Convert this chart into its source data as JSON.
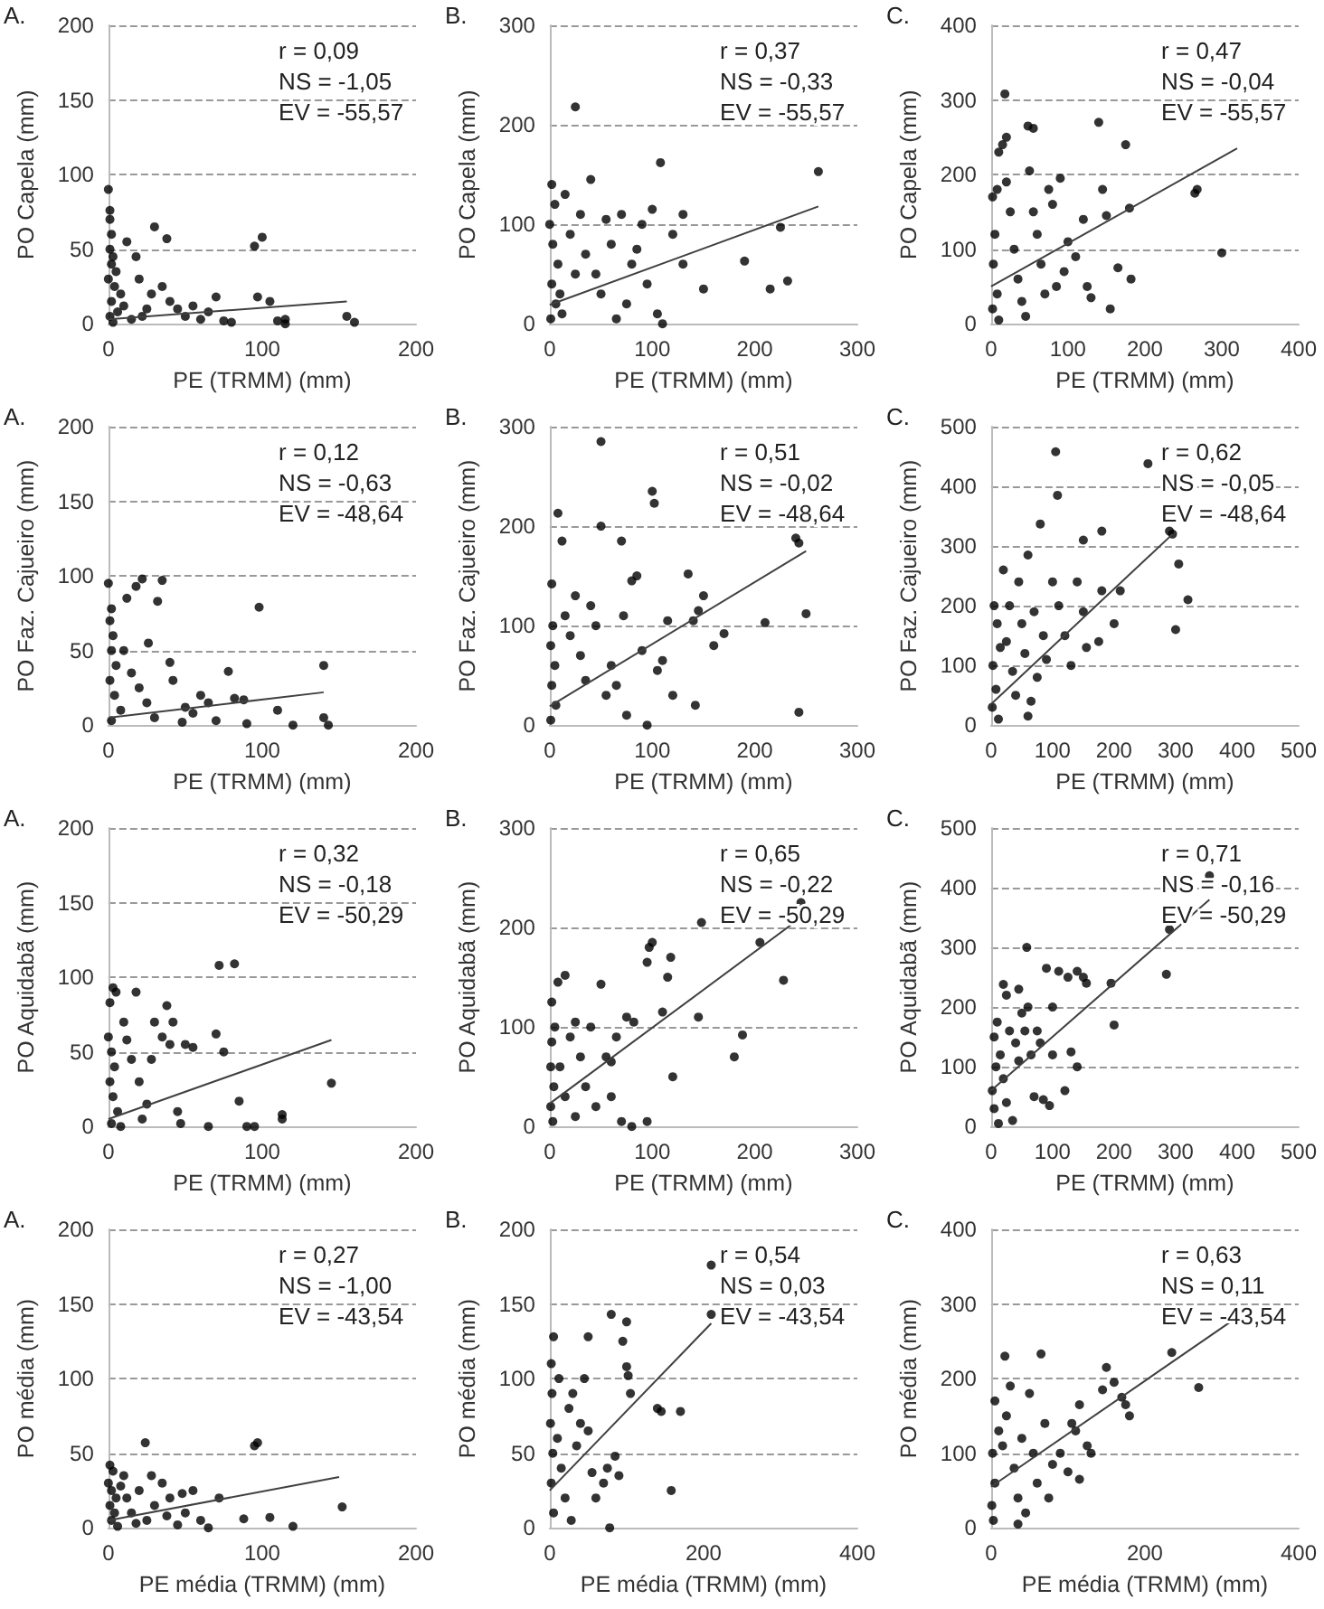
{
  "chart_data": [
    {
      "type": "scatter",
      "title": "A.",
      "xlabel": "PE (TRMM) (mm)",
      "ylabel": "PO Capela (mm)",
      "annotations": [
        "r = 0,09",
        "NS = -1,05",
        "EV = -55,57"
      ],
      "xlim": [
        0,
        200
      ],
      "xticks": [
        0,
        100,
        200
      ],
      "ylim": [
        0,
        200
      ],
      "yticks": [
        0,
        50,
        100,
        150,
        200
      ],
      "grid": "y",
      "marker": "circle",
      "series": [
        {
          "color": "#000000",
          "x": [
            0,
            1,
            1,
            2,
            1,
            3,
            2,
            5,
            0,
            4,
            8,
            2,
            10,
            6,
            1,
            15,
            3,
            12,
            20,
            25,
            28,
            30,
            35,
            38,
            40,
            45,
            50,
            60,
            70,
            75,
            80,
            95,
            100,
            97,
            105,
            110,
            115,
            115,
            155,
            160,
            18,
            22,
            55,
            65
          ],
          "values": [
            90,
            76,
            70,
            60,
            50,
            45,
            40,
            35,
            30,
            25,
            20,
            15,
            12,
            8,
            5,
            3,
            1,
            55,
            30,
            10,
            20,
            65,
            25,
            57,
            15,
            10,
            5,
            3,
            18,
            2,
            1,
            52,
            58,
            18,
            15,
            2,
            3,
            0,
            5,
            1,
            45,
            5,
            12,
            8
          ]
        },
        {
          "type": "line",
          "color": "#404040",
          "marker": "none",
          "x": [
            0,
            155
          ],
          "values": [
            3,
            15
          ]
        }
      ]
    },
    {
      "type": "scatter",
      "title": "B.",
      "xlabel": "PE (TRMM) (mm)",
      "ylabel": "PO Capela (mm)",
      "annotations": [
        "r = 0,37",
        "NS = -0,33",
        "EV = -55,57"
      ],
      "xlim": [
        0,
        300
      ],
      "xticks": [
        0,
        100,
        200,
        300
      ],
      "ylim": [
        0,
        300
      ],
      "yticks": [
        0,
        100,
        200,
        300
      ],
      "grid": "y",
      "marker": "circle",
      "series": [
        {
          "color": "#000000",
          "x": [
            25,
            2,
            5,
            0,
            3,
            8,
            2,
            6,
            1,
            15,
            20,
            30,
            40,
            35,
            45,
            50,
            60,
            70,
            75,
            80,
            90,
            95,
            100,
            105,
            108,
            110,
            120,
            130,
            130,
            150,
            190,
            215,
            225,
            232,
            262,
            10,
            55,
            65,
            85,
            25,
            12
          ],
          "values": [
            218,
            140,
            120,
            100,
            80,
            60,
            40,
            20,
            5,
            130,
            90,
            110,
            145,
            70,
            50,
            30,
            80,
            110,
            20,
            60,
            100,
            40,
            115,
            10,
            162,
            0,
            90,
            110,
            60,
            35,
            63,
            35,
            97,
            43,
            153,
            30,
            105,
            5,
            75,
            50,
            10
          ]
        },
        {
          "type": "line",
          "color": "#404040",
          "marker": "none",
          "x": [
            0,
            262
          ],
          "values": [
            19,
            118
          ]
        }
      ]
    },
    {
      "type": "scatter",
      "title": "C.",
      "xlabel": "PE (TRMM) (mm)",
      "ylabel": "PO Capela (mm)",
      "annotations": [
        "r = 0,47",
        "NS = -0,04",
        "EV = -55,57"
      ],
      "xlim": [
        0,
        400
      ],
      "xticks": [
        0,
        100,
        200,
        300,
        400
      ],
      "ylim": [
        0,
        400
      ],
      "yticks": [
        0,
        100,
        200,
        300,
        400
      ],
      "grid": "y",
      "marker": "circle",
      "series": [
        {
          "color": "#000000",
          "x": [
            18,
            15,
            20,
            10,
            8,
            20,
            2,
            5,
            3,
            8,
            2,
            10,
            25,
            30,
            35,
            40,
            48,
            55,
            50,
            55,
            60,
            65,
            70,
            75,
            80,
            90,
            95,
            100,
            110,
            120,
            125,
            130,
            140,
            145,
            150,
            155,
            165,
            175,
            180,
            182,
            265,
            268,
            300,
            85,
            45
          ],
          "values": [
            308,
            240,
            250,
            230,
            180,
            190,
            170,
            120,
            80,
            40,
            20,
            5,
            150,
            100,
            60,
            30,
            265,
            262,
            205,
            150,
            120,
            80,
            40,
            180,
            160,
            195,
            70,
            110,
            90,
            140,
            50,
            35,
            270,
            180,
            145,
            20,
            75,
            240,
            155,
            60,
            175,
            180,
            95,
            50,
            10
          ]
        },
        {
          "type": "line",
          "color": "#404040",
          "marker": "none",
          "x": [
            0,
            320
          ],
          "values": [
            50,
            235
          ]
        }
      ]
    },
    {
      "type": "scatter",
      "title": "A.",
      "xlabel": "PE (TRMM) (mm)",
      "ylabel": "PO Faz. Cajueiro (mm)",
      "annotations": [
        "r = 0,12",
        "NS = -0,63",
        "EV = -48,64"
      ],
      "xlim": [
        0,
        200
      ],
      "xticks": [
        0,
        100,
        200
      ],
      "ylim": [
        0,
        200
      ],
      "yticks": [
        0,
        50,
        100,
        150,
        200
      ],
      "grid": "y",
      "marker": "circle",
      "series": [
        {
          "color": "#000000",
          "x": [
            0,
            2,
            1,
            3,
            2,
            5,
            1,
            4,
            8,
            2,
            18,
            22,
            32,
            35,
            12,
            10,
            15,
            20,
            25,
            30,
            40,
            42,
            50,
            55,
            60,
            70,
            78,
            82,
            88,
            90,
            98,
            110,
            120,
            140,
            140,
            143,
            48,
            65,
            26
          ],
          "values": [
            95,
            78,
            70,
            60,
            50,
            40,
            30,
            20,
            10,
            3,
            93,
            98,
            83,
            97,
            85,
            50,
            35,
            25,
            15,
            5,
            42,
            30,
            12,
            8,
            20,
            3,
            36,
            18,
            17,
            1,
            79,
            10,
            0,
            40,
            5,
            0,
            2,
            15,
            55
          ]
        },
        {
          "type": "line",
          "color": "#404040",
          "marker": "none",
          "x": [
            0,
            140
          ],
          "values": [
            5,
            22
          ]
        }
      ]
    },
    {
      "type": "scatter",
      "title": "B.",
      "xlabel": "PE (TRMM) (mm)",
      "ylabel": "PO Faz. Cajueiro (mm)",
      "annotations": [
        "r = 0,51",
        "NS = -0,02",
        "EV = -48,64"
      ],
      "xlim": [
        0,
        300
      ],
      "xticks": [
        0,
        100,
        200,
        300
      ],
      "ylim": [
        0,
        300
      ],
      "yticks": [
        0,
        100,
        200,
        300
      ],
      "grid": "y",
      "marker": "circle",
      "series": [
        {
          "color": "#000000",
          "x": [
            50,
            8,
            12,
            2,
            3,
            1,
            5,
            2,
            6,
            1,
            15,
            20,
            25,
            30,
            40,
            45,
            50,
            55,
            60,
            70,
            72,
            75,
            80,
            85,
            90,
            95,
            100,
            102,
            105,
            110,
            115,
            120,
            135,
            140,
            145,
            142,
            150,
            160,
            170,
            210,
            240,
            243,
            243,
            250,
            35,
            65
          ],
          "values": [
            285,
            213,
            185,
            142,
            100,
            80,
            60,
            40,
            20,
            5,
            110,
            90,
            130,
            70,
            120,
            100,
            200,
            30,
            60,
            185,
            110,
            10,
            145,
            150,
            75,
            0,
            235,
            223,
            55,
            65,
            105,
            30,
            152,
            105,
            115,
            20,
            130,
            80,
            92,
            103,
            188,
            183,
            13,
            112,
            45,
            40
          ]
        },
        {
          "type": "line",
          "color": "#404040",
          "marker": "none",
          "x": [
            0,
            250
          ],
          "values": [
            19,
            175
          ]
        }
      ]
    },
    {
      "type": "scatter",
      "title": "C.",
      "xlabel": "PE (TRMM) (mm)",
      "ylabel": "PO Faz. Cajueiro (mm)",
      "annotations": [
        "r = 0,62",
        "NS = -0,05",
        "EV = -48,64"
      ],
      "xlim": [
        0,
        500
      ],
      "xticks": [
        0,
        100,
        200,
        300,
        400,
        500
      ],
      "ylim": [
        0,
        500
      ],
      "yticks": [
        0,
        100,
        200,
        300,
        400,
        500
      ],
      "grid": "y",
      "marker": "circle",
      "series": [
        {
          "color": "#000000",
          "x": [
            105,
            108,
            255,
            80,
            60,
            290,
            150,
            180,
            295,
            305,
            300,
            320,
            5,
            10,
            15,
            3,
            8,
            2,
            12,
            20,
            25,
            30,
            35,
            40,
            50,
            55,
            60,
            70,
            75,
            85,
            90,
            100,
            110,
            120,
            130,
            140,
            150,
            155,
            175,
            180,
            200,
            210,
            45,
            65
          ],
          "values": [
            458,
            385,
            438,
            337,
            285,
            325,
            310,
            325,
            320,
            270,
            160,
            210,
            200,
            170,
            130,
            100,
            60,
            30,
            10,
            260,
            140,
            200,
            90,
            50,
            170,
            120,
            15,
            190,
            80,
            150,
            110,
            240,
            200,
            150,
            100,
            240,
            190,
            130,
            140,
            225,
            170,
            225,
            240,
            40
          ]
        },
        {
          "type": "line",
          "color": "#404040",
          "marker": "none",
          "x": [
            0,
            295
          ],
          "values": [
            35,
            320
          ]
        }
      ]
    },
    {
      "type": "scatter",
      "title": "A.",
      "xlabel": "PE (TRMM) (mm)",
      "ylabel": "PO Aquidabã (mm)",
      "annotations": [
        "r = 0,32",
        "NS = -0,18",
        "EV = -50,29"
      ],
      "xlim": [
        0,
        200
      ],
      "xticks": [
        0,
        100,
        200
      ],
      "ylim": [
        0,
        200
      ],
      "yticks": [
        0,
        50,
        100,
        150,
        200
      ],
      "grid": "y",
      "marker": "circle",
      "series": [
        {
          "color": "#000000",
          "x": [
            3,
            1,
            5,
            0,
            2,
            4,
            1,
            3,
            6,
            2,
            10,
            12,
            15,
            18,
            20,
            25,
            28,
            30,
            35,
            38,
            40,
            42,
            45,
            50,
            55,
            65,
            70,
            72,
            75,
            82,
            85,
            90,
            95,
            113,
            113,
            145,
            8,
            22,
            47
          ],
          "values": [
            93,
            83,
            90,
            60,
            50,
            40,
            30,
            20,
            10,
            2,
            70,
            58,
            45,
            90,
            30,
            15,
            45,
            70,
            60,
            81,
            55,
            70,
            10,
            55,
            53,
            0,
            62,
            108,
            50,
            109,
            17,
            0,
            0,
            8,
            5,
            29,
            0,
            5,
            2
          ]
        },
        {
          "type": "line",
          "color": "#404040",
          "marker": "none",
          "x": [
            0,
            145
          ],
          "values": [
            5,
            58
          ]
        }
      ]
    },
    {
      "type": "scatter",
      "title": "B.",
      "xlabel": "PE (TRMM) (mm)",
      "ylabel": "PO Aquidabã (mm)",
      "annotations": [
        "r = 0,65",
        "NS = -0,22",
        "EV = -50,29"
      ],
      "xlim": [
        0,
        300
      ],
      "xticks": [
        0,
        100,
        200,
        300
      ],
      "ylim": [
        0,
        300
      ],
      "yticks": [
        0,
        100,
        200,
        300
      ],
      "grid": "y",
      "marker": "circle",
      "series": [
        {
          "color": "#000000",
          "x": [
            2,
            8,
            15,
            5,
            2,
            1,
            4,
            1,
            3,
            10,
            15,
            20,
            25,
            30,
            35,
            40,
            45,
            50,
            55,
            60,
            65,
            70,
            75,
            80,
            82,
            95,
            95,
            97,
            100,
            110,
            115,
            118,
            120,
            145,
            148,
            180,
            188,
            205,
            228,
            245,
            25,
            60
          ],
          "values": [
            125,
            145,
            152,
            100,
            85,
            60,
            40,
            20,
            5,
            60,
            30,
            90,
            105,
            70,
            40,
            100,
            20,
            143,
            70,
            65,
            90,
            5,
            110,
            0,
            105,
            5,
            165,
            180,
            185,
            115,
            150,
            170,
            50,
            110,
            205,
            70,
            92,
            185,
            147,
            225,
            10,
            30
          ]
        },
        {
          "type": "line",
          "color": "#404040",
          "marker": "none",
          "x": [
            0,
            245
          ],
          "values": [
            23,
            210
          ]
        }
      ]
    },
    {
      "type": "scatter",
      "title": "C.",
      "xlabel": "PE (TRMM) (mm)",
      "ylabel": "PO Aquidabã (mm)",
      "annotations": [
        "r = 0,71",
        "NS = -0,16",
        "EV = -50,29"
      ],
      "xlim": [
        0,
        500
      ],
      "xticks": [
        0,
        100,
        200,
        300,
        400,
        500
      ],
      "ylim": [
        0,
        500
      ],
      "yticks": [
        0,
        100,
        200,
        300,
        400,
        500
      ],
      "grid": "y",
      "marker": "circle",
      "series": [
        {
          "color": "#000000",
          "x": [
            58,
            20,
            25,
            10,
            5,
            8,
            2,
            5,
            12,
            15,
            20,
            25,
            30,
            35,
            40,
            45,
            50,
            55,
            60,
            65,
            70,
            75,
            80,
            85,
            90,
            95,
            100,
            100,
            110,
            120,
            125,
            130,
            140,
            140,
            150,
            155,
            195,
            200,
            285,
            290,
            355,
            45
          ],
          "values": [
            300,
            238,
            220,
            175,
            150,
            100,
            60,
            30,
            5,
            120,
            80,
            40,
            160,
            10,
            140,
            110,
            190,
            160,
            200,
            120,
            50,
            160,
            140,
            45,
            265,
            35,
            200,
            120,
            260,
            60,
            250,
            125,
            260,
            100,
            250,
            240,
            240,
            170,
            255,
            330,
            420,
            230
          ]
        },
        {
          "type": "line",
          "color": "#404040",
          "marker": "none",
          "x": [
            0,
            355
          ],
          "values": [
            60,
            380
          ]
        }
      ]
    },
    {
      "type": "scatter",
      "title": "A.",
      "xlabel": "PE média (TRMM) (mm)",
      "ylabel": "PO média (mm)",
      "annotations": [
        "r = 0,27",
        "NS = -1,00",
        "EV = -43,54"
      ],
      "xlim": [
        0,
        200
      ],
      "xticks": [
        0,
        100,
        200
      ],
      "ylim": [
        0,
        200
      ],
      "yticks": [
        0,
        50,
        100,
        150,
        200
      ],
      "grid": "y",
      "marker": "circle",
      "series": [
        {
          "color": "#000000",
          "x": [
            1,
            3,
            0,
            2,
            5,
            1,
            4,
            2,
            6,
            10,
            12,
            15,
            20,
            24,
            25,
            28,
            30,
            35,
            38,
            40,
            45,
            48,
            50,
            55,
            60,
            65,
            72,
            88,
            95,
            97,
            105,
            120,
            152,
            18,
            8
          ],
          "values": [
            42,
            38,
            30,
            25,
            20,
            15,
            10,
            5,
            1,
            35,
            20,
            10,
            25,
            57,
            5,
            35,
            15,
            30,
            8,
            20,
            2,
            23,
            10,
            25,
            5,
            0,
            20,
            6,
            55,
            57,
            7,
            1,
            14,
            3,
            28
          ]
        },
        {
          "type": "line",
          "color": "#404040",
          "marker": "none",
          "x": [
            0,
            150
          ],
          "values": [
            5,
            34
          ]
        }
      ]
    },
    {
      "type": "scatter",
      "title": "B.",
      "xlabel": "PE média (TRMM) (mm)",
      "ylabel": "PO média (mm)",
      "annotations": [
        "r = 0,54",
        "NS = 0,03",
        "EV = -43,54"
      ],
      "xlim": [
        0,
        400
      ],
      "xticks": [
        0,
        200,
        400
      ],
      "ylim": [
        0,
        200
      ],
      "yticks": [
        0,
        50,
        100,
        150,
        200
      ],
      "grid": "y",
      "marker": "circle",
      "series": [
        {
          "color": "#000000",
          "x": [
            210,
            210,
            80,
            5,
            50,
            100,
            95,
            100,
            102,
            105,
            2,
            3,
            1,
            4,
            2,
            5,
            10,
            15,
            20,
            25,
            30,
            35,
            40,
            45,
            50,
            55,
            60,
            70,
            75,
            78,
            85,
            90,
            140,
            145,
            158,
            170,
            28,
            12
          ],
          "values": [
            176,
            143,
            143,
            128,
            128,
            138,
            125,
            108,
            102,
            90,
            110,
            90,
            70,
            50,
            30,
            10,
            60,
            40,
            20,
            80,
            90,
            55,
            70,
            100,
            65,
            37,
            20,
            30,
            40,
            0,
            48,
            35,
            80,
            78,
            25,
            78,
            5,
            100
          ]
        },
        {
          "type": "line",
          "color": "#404040",
          "marker": "none",
          "x": [
            0,
            210
          ],
          "values": [
            25,
            137
          ]
        }
      ]
    },
    {
      "type": "scatter",
      "title": "C.",
      "xlabel": "PE média (TRMM) (mm)",
      "ylabel": "PO média (mm)",
      "annotations": [
        "r = 0,63",
        "NS = 0,11",
        "EV = -43,54"
      ],
      "xlim": [
        0,
        400
      ],
      "xticks": [
        0,
        200,
        400
      ],
      "ylim": [
        0,
        400
      ],
      "yticks": [
        0,
        100,
        200,
        300,
        400
      ],
      "grid": "y",
      "marker": "circle",
      "series": [
        {
          "color": "#000000",
          "x": [
            235,
            270,
            5,
            10,
            2,
            5,
            1,
            3,
            15,
            18,
            20,
            25,
            30,
            35,
            40,
            45,
            50,
            55,
            60,
            65,
            70,
            75,
            80,
            90,
            100,
            105,
            110,
            115,
            115,
            125,
            130,
            145,
            150,
            160,
            170,
            175,
            180,
            35
          ],
          "values": [
            235,
            188,
            170,
            130,
            100,
            60,
            30,
            10,
            110,
            230,
            150,
            190,
            80,
            40,
            120,
            20,
            180,
            100,
            60,
            233,
            140,
            40,
            85,
            100,
            75,
            140,
            130,
            165,
            65,
            110,
            100,
            185,
            215,
            195,
            175,
            165,
            150,
            5
          ]
        },
        {
          "type": "line",
          "color": "#404040",
          "marker": "none",
          "x": [
            0,
            310
          ],
          "values": [
            55,
            275
          ]
        }
      ]
    }
  ]
}
